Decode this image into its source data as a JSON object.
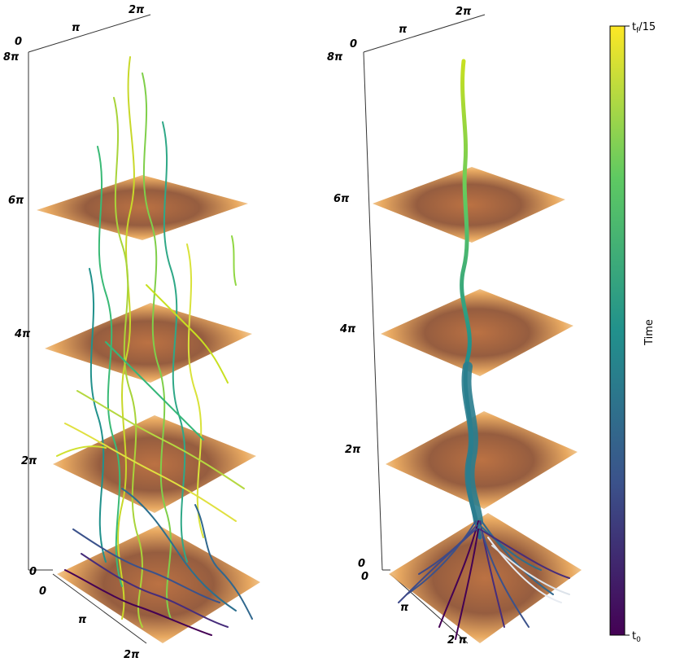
{
  "left_panel": {
    "top_axis_ticks": [
      "0",
      "π",
      "2π"
    ],
    "vertical_axis_ticks": [
      "8π",
      "6π",
      "4π",
      "2π",
      "0"
    ],
    "bottom_axis_ticks": [
      "0",
      "π",
      "2π"
    ]
  },
  "right_panel": {
    "top_axis_ticks": [
      "0",
      "π",
      "2π"
    ],
    "vertical_axis_ticks": [
      "8π",
      "6π",
      "4π",
      "2π",
      "0"
    ],
    "bottom_axis_ticks": [
      "0",
      "π",
      "2 π"
    ]
  },
  "colorbar": {
    "top_label": "t",
    "top_label_sub": "f",
    "top_label_suffix": "/15",
    "bottom_label": "t",
    "bottom_label_sub": "0",
    "title": "Time",
    "colormap": "viridis",
    "stops": [
      "#440154",
      "#3b528b",
      "#21918c",
      "#5ec962",
      "#fde725"
    ]
  },
  "slice_colors": {
    "dark": "#8a4b2a",
    "mid": "#d98a3a",
    "light": "#fff6d8"
  }
}
